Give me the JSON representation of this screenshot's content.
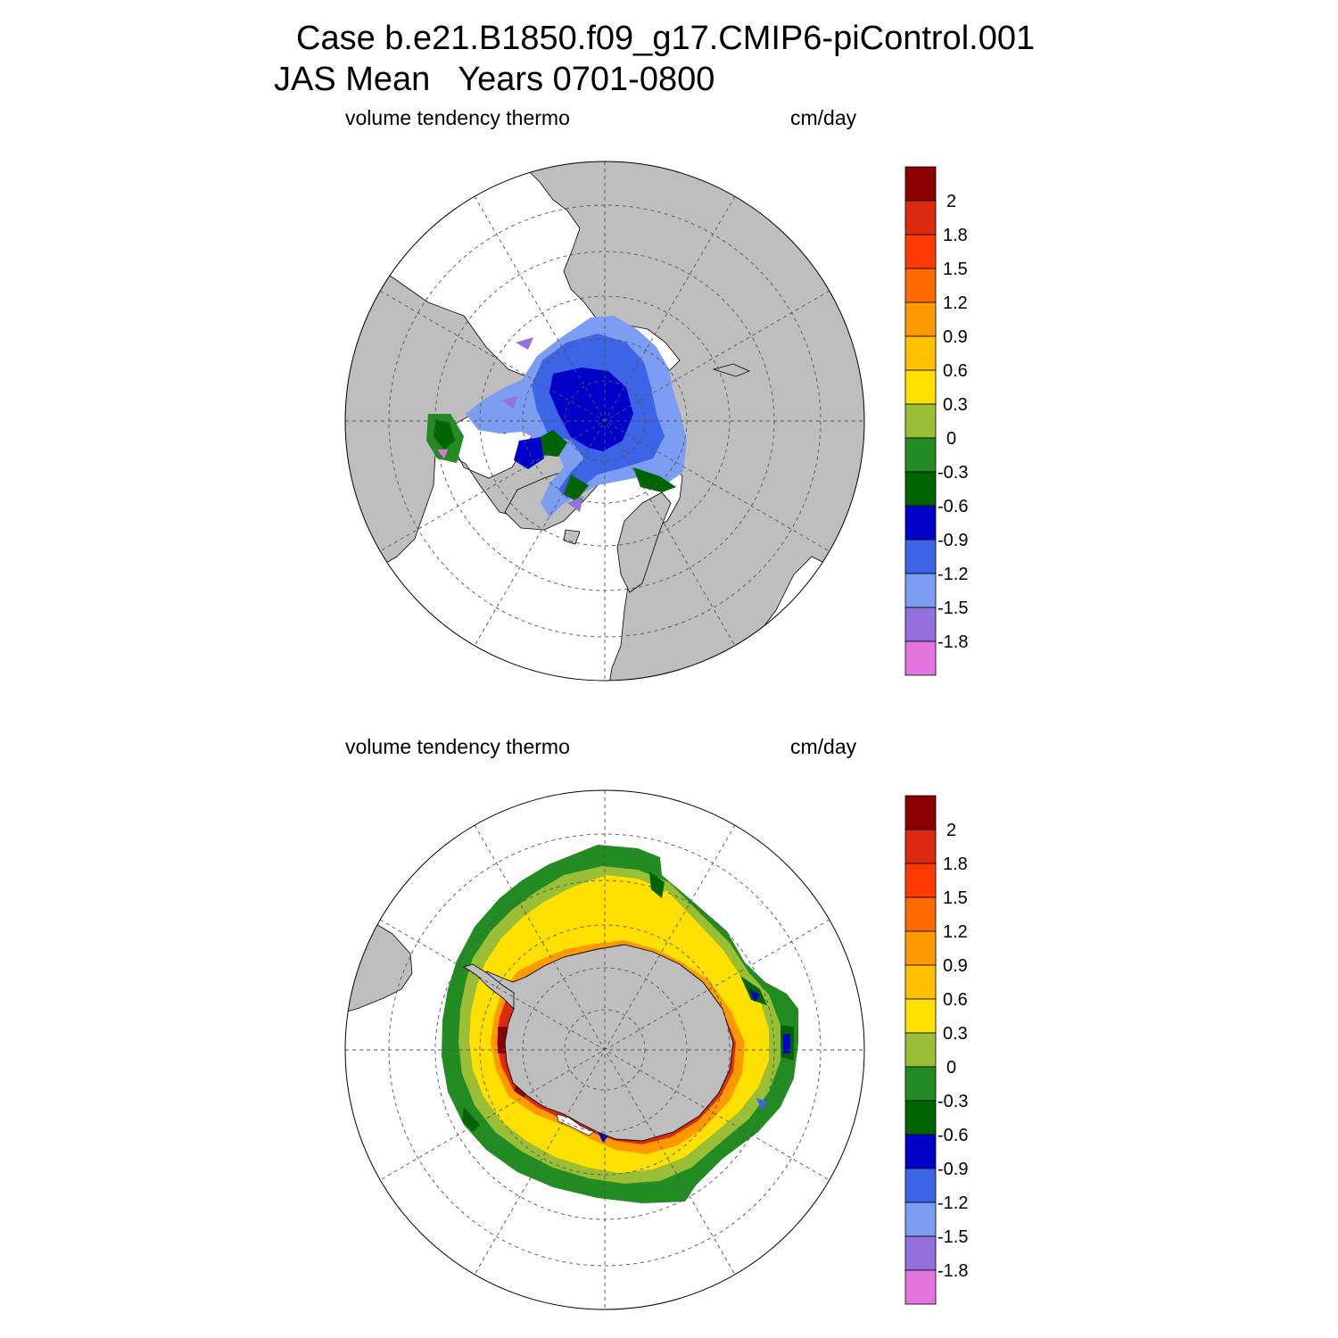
{
  "header": {
    "case_line": "Case b.e21.B1850.f09_g17.CMIP6-piControl.001",
    "period_line": "JAS Mean   Years 0701-0800"
  },
  "panels": [
    {
      "id": "north",
      "variable_label": "volume tendency thermo",
      "units_label": "cm/day",
      "hemisphere": "Northern Hemisphere (north polar stereographic)"
    },
    {
      "id": "south",
      "variable_label": "volume tendency thermo",
      "units_label": "cm/day",
      "hemisphere": "Southern Hemisphere (south polar stereographic)"
    }
  ],
  "colorbar": {
    "tick_labels": [
      "2",
      "1.8",
      "1.5",
      "1.2",
      "0.9",
      "0.6",
      "0.3",
      "0",
      "-0.3",
      "-0.6",
      "-0.9",
      "-1.2",
      "-1.5",
      "-1.8"
    ],
    "colors_top_to_bottom": [
      "#8b0000",
      "#dc2a11",
      "#ff3a00",
      "#ff6a00",
      "#ff9900",
      "#ffc000",
      "#ffe000",
      "#9abf36",
      "#228b22",
      "#006400",
      "#0000c8",
      "#3c64e6",
      "#7b9ef2",
      "#9370db",
      "#e474e0"
    ]
  },
  "colors": {
    "land": "#bebebe",
    "ocean_no_ice": "#ffffff",
    "grid": "#555555"
  }
}
